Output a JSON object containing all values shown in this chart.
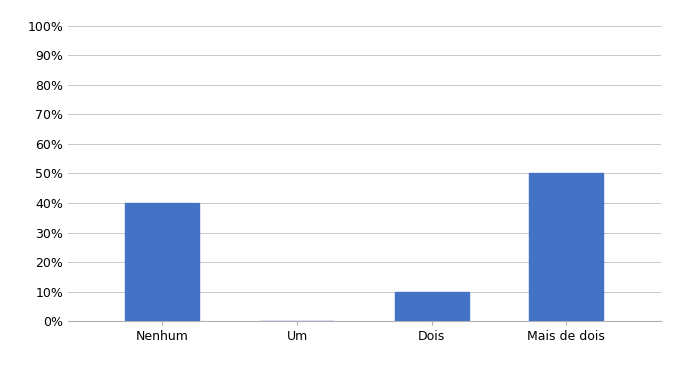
{
  "categories": [
    "Nenhum",
    "Um",
    "Dois",
    "Mais de dois"
  ],
  "values": [
    0.4,
    0.0,
    0.1,
    0.5
  ],
  "bar_color": "#4472C4",
  "ylim": [
    0,
    1.0
  ],
  "yticks": [
    0.0,
    0.1,
    0.2,
    0.3,
    0.4,
    0.5,
    0.6,
    0.7,
    0.8,
    0.9,
    1.0
  ],
  "ytick_labels": [
    "0%",
    "10%",
    "20%",
    "30%",
    "40%",
    "50%",
    "60%",
    "70%",
    "80%",
    "90%",
    "100%"
  ],
  "background_color": "#ffffff",
  "grid_color": "#c8c8c8",
  "bar_width": 0.55,
  "tick_fontsize": 9,
  "xlabel_fontsize": 9,
  "spine_color": "#b0b0b0"
}
